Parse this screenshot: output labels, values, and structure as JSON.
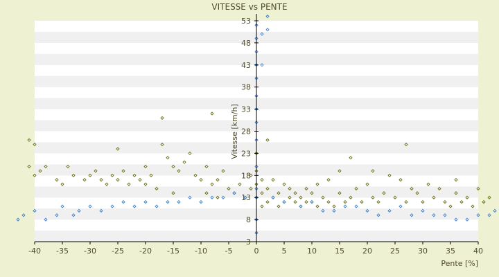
{
  "chart_data": {
    "type": "scatter",
    "title": "VITESSE vs PENTE",
    "xlabel": "Pente [%]",
    "ylabel": "Vitesse [km/h]",
    "xlim": [
      -40,
      40
    ],
    "ylim": [
      3,
      53
    ],
    "x_ticks": [
      -40,
      -35,
      -30,
      -25,
      -20,
      -15,
      -10,
      -5,
      0,
      5,
      10,
      15,
      20,
      25,
      30,
      35,
      40
    ],
    "y_ticks": [
      3,
      8,
      13,
      18,
      23,
      28,
      33,
      38,
      43,
      48,
      53
    ],
    "y_tick_labels": [
      "3",
      "8",
      "13",
      "18",
      "23",
      "28",
      "33",
      "38",
      "43",
      "48",
      "53"
    ],
    "grid": "horizontal alternating bands",
    "legend": "none",
    "colors": {
      "background": "#eef2d2",
      "band_light": "#ffffff",
      "band_dark": "#f0f0f0",
      "series_olive": "#6b6b12",
      "series_blue": "#3a7fd0",
      "axis": "#000000",
      "text": "#4d4a2a"
    },
    "series": [
      {
        "color": "#6b6b12",
        "marker": "diamond",
        "points": [
          [
            -41,
            20
          ],
          [
            -41,
            26
          ],
          [
            -40,
            18
          ],
          [
            -40,
            25
          ],
          [
            -39,
            19
          ],
          [
            -38,
            20
          ],
          [
            -36,
            17
          ],
          [
            -35,
            16
          ],
          [
            -34,
            20
          ],
          [
            -33,
            18
          ],
          [
            -31,
            17
          ],
          [
            -30,
            18
          ],
          [
            -29,
            19
          ],
          [
            -28,
            17
          ],
          [
            -27,
            16
          ],
          [
            -26,
            18
          ],
          [
            -25,
            17
          ],
          [
            -25,
            24
          ],
          [
            -24,
            19
          ],
          [
            -23,
            16
          ],
          [
            -22,
            18
          ],
          [
            -21,
            17
          ],
          [
            -20,
            20
          ],
          [
            -20,
            16
          ],
          [
            -19,
            18
          ],
          [
            -18,
            15
          ],
          [
            -17,
            31
          ],
          [
            -17,
            25
          ],
          [
            -16,
            22
          ],
          [
            -15,
            20
          ],
          [
            -15,
            14
          ],
          [
            -14,
            19
          ],
          [
            -13,
            21
          ],
          [
            -12,
            23
          ],
          [
            -11,
            18
          ],
          [
            -10,
            17
          ],
          [
            -9,
            14
          ],
          [
            -9,
            20
          ],
          [
            -8,
            32
          ],
          [
            -8,
            16
          ],
          [
            -7,
            17
          ],
          [
            -7,
            13
          ],
          [
            -6,
            19
          ],
          [
            -5,
            15
          ],
          [
            -4,
            14
          ],
          [
            -3,
            16
          ],
          [
            -2,
            13
          ],
          [
            -1,
            15
          ],
          [
            -1,
            18
          ],
          [
            0,
            13
          ],
          [
            0,
            16
          ],
          [
            0,
            19
          ],
          [
            0,
            23
          ],
          [
            1,
            14
          ],
          [
            1,
            17
          ],
          [
            1,
            11
          ],
          [
            2,
            15
          ],
          [
            2,
            26
          ],
          [
            2,
            12
          ],
          [
            3,
            13
          ],
          [
            3,
            17
          ],
          [
            4,
            14
          ],
          [
            4,
            11
          ],
          [
            5,
            12
          ],
          [
            5,
            16
          ],
          [
            6,
            13
          ],
          [
            6,
            15
          ],
          [
            7,
            12
          ],
          [
            7,
            14
          ],
          [
            8,
            11
          ],
          [
            8,
            13
          ],
          [
            9,
            12
          ],
          [
            9,
            15
          ],
          [
            10,
            14
          ],
          [
            10,
            12
          ],
          [
            11,
            11
          ],
          [
            11,
            16
          ],
          [
            12,
            13
          ],
          [
            13,
            12
          ],
          [
            13,
            17
          ],
          [
            14,
            11
          ],
          [
            15,
            14
          ],
          [
            15,
            19
          ],
          [
            16,
            12
          ],
          [
            17,
            13
          ],
          [
            17,
            22
          ],
          [
            18,
            15
          ],
          [
            19,
            12
          ],
          [
            20,
            16
          ],
          [
            21,
            13
          ],
          [
            21,
            19
          ],
          [
            22,
            12
          ],
          [
            23,
            14
          ],
          [
            24,
            18
          ],
          [
            25,
            13
          ],
          [
            26,
            17
          ],
          [
            27,
            12
          ],
          [
            27,
            25
          ],
          [
            28,
            15
          ],
          [
            29,
            14
          ],
          [
            30,
            12
          ],
          [
            31,
            16
          ],
          [
            32,
            13
          ],
          [
            33,
            15
          ],
          [
            34,
            12
          ],
          [
            35,
            11
          ],
          [
            36,
            14
          ],
          [
            36,
            17
          ],
          [
            37,
            12
          ],
          [
            38,
            13
          ],
          [
            39,
            11
          ],
          [
            40,
            15
          ],
          [
            41,
            12
          ],
          [
            42,
            13
          ]
        ]
      },
      {
        "color": "#3a7fd0",
        "marker": "diamond",
        "points": [
          [
            -43,
            8
          ],
          [
            -42,
            9
          ],
          [
            -40,
            10
          ],
          [
            -38,
            8
          ],
          [
            -36,
            9
          ],
          [
            -35,
            11
          ],
          [
            -33,
            9
          ],
          [
            -32,
            10
          ],
          [
            -30,
            11
          ],
          [
            -28,
            10
          ],
          [
            -26,
            11
          ],
          [
            -24,
            12
          ],
          [
            -22,
            11
          ],
          [
            -20,
            12
          ],
          [
            -18,
            11
          ],
          [
            -16,
            12
          ],
          [
            -14,
            12
          ],
          [
            -12,
            13
          ],
          [
            -10,
            12
          ],
          [
            -8,
            13
          ],
          [
            -6,
            13
          ],
          [
            -4,
            14
          ],
          [
            -2,
            13
          ],
          [
            0,
            8
          ],
          [
            0,
            5
          ],
          [
            0,
            13
          ],
          [
            0,
            15
          ],
          [
            0,
            20
          ],
          [
            0,
            26
          ],
          [
            0,
            30
          ],
          [
            0,
            33
          ],
          [
            0,
            36
          ],
          [
            0,
            40
          ],
          [
            0,
            43
          ],
          [
            0,
            46
          ],
          [
            0,
            49
          ],
          [
            0,
            52
          ],
          [
            1,
            43
          ],
          [
            1,
            50
          ],
          [
            2,
            51
          ],
          [
            2,
            54
          ],
          [
            3,
            13
          ],
          [
            5,
            12
          ],
          [
            8,
            11
          ],
          [
            10,
            12
          ],
          [
            12,
            10
          ],
          [
            14,
            10
          ],
          [
            16,
            11
          ],
          [
            18,
            11
          ],
          [
            20,
            10
          ],
          [
            22,
            9
          ],
          [
            24,
            10
          ],
          [
            26,
            11
          ],
          [
            28,
            9
          ],
          [
            30,
            10
          ],
          [
            32,
            9
          ],
          [
            34,
            9
          ],
          [
            36,
            8
          ],
          [
            38,
            8
          ],
          [
            40,
            9
          ],
          [
            42,
            9
          ],
          [
            43,
            10
          ]
        ]
      }
    ]
  }
}
